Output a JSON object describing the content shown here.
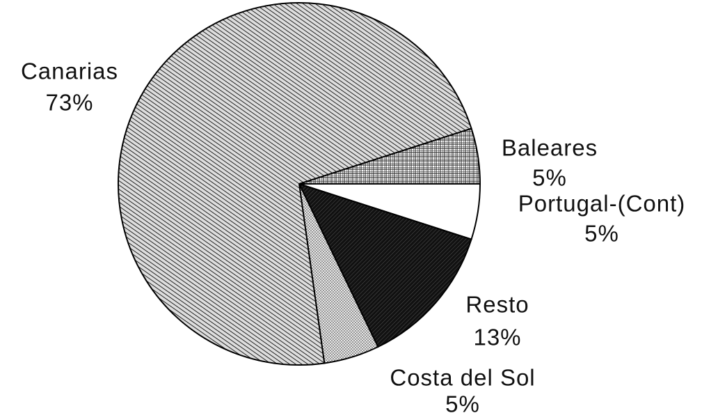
{
  "chart_data": {
    "type": "pie",
    "categories": [
      "Baleares",
      "Portugal-(Cont)",
      "Resto",
      "Costa del Sol",
      "Canarias"
    ],
    "values": [
      5,
      5,
      13,
      5,
      73
    ],
    "value_labels": [
      "5%",
      "5%",
      "13%",
      "5%",
      "73%"
    ]
  }
}
